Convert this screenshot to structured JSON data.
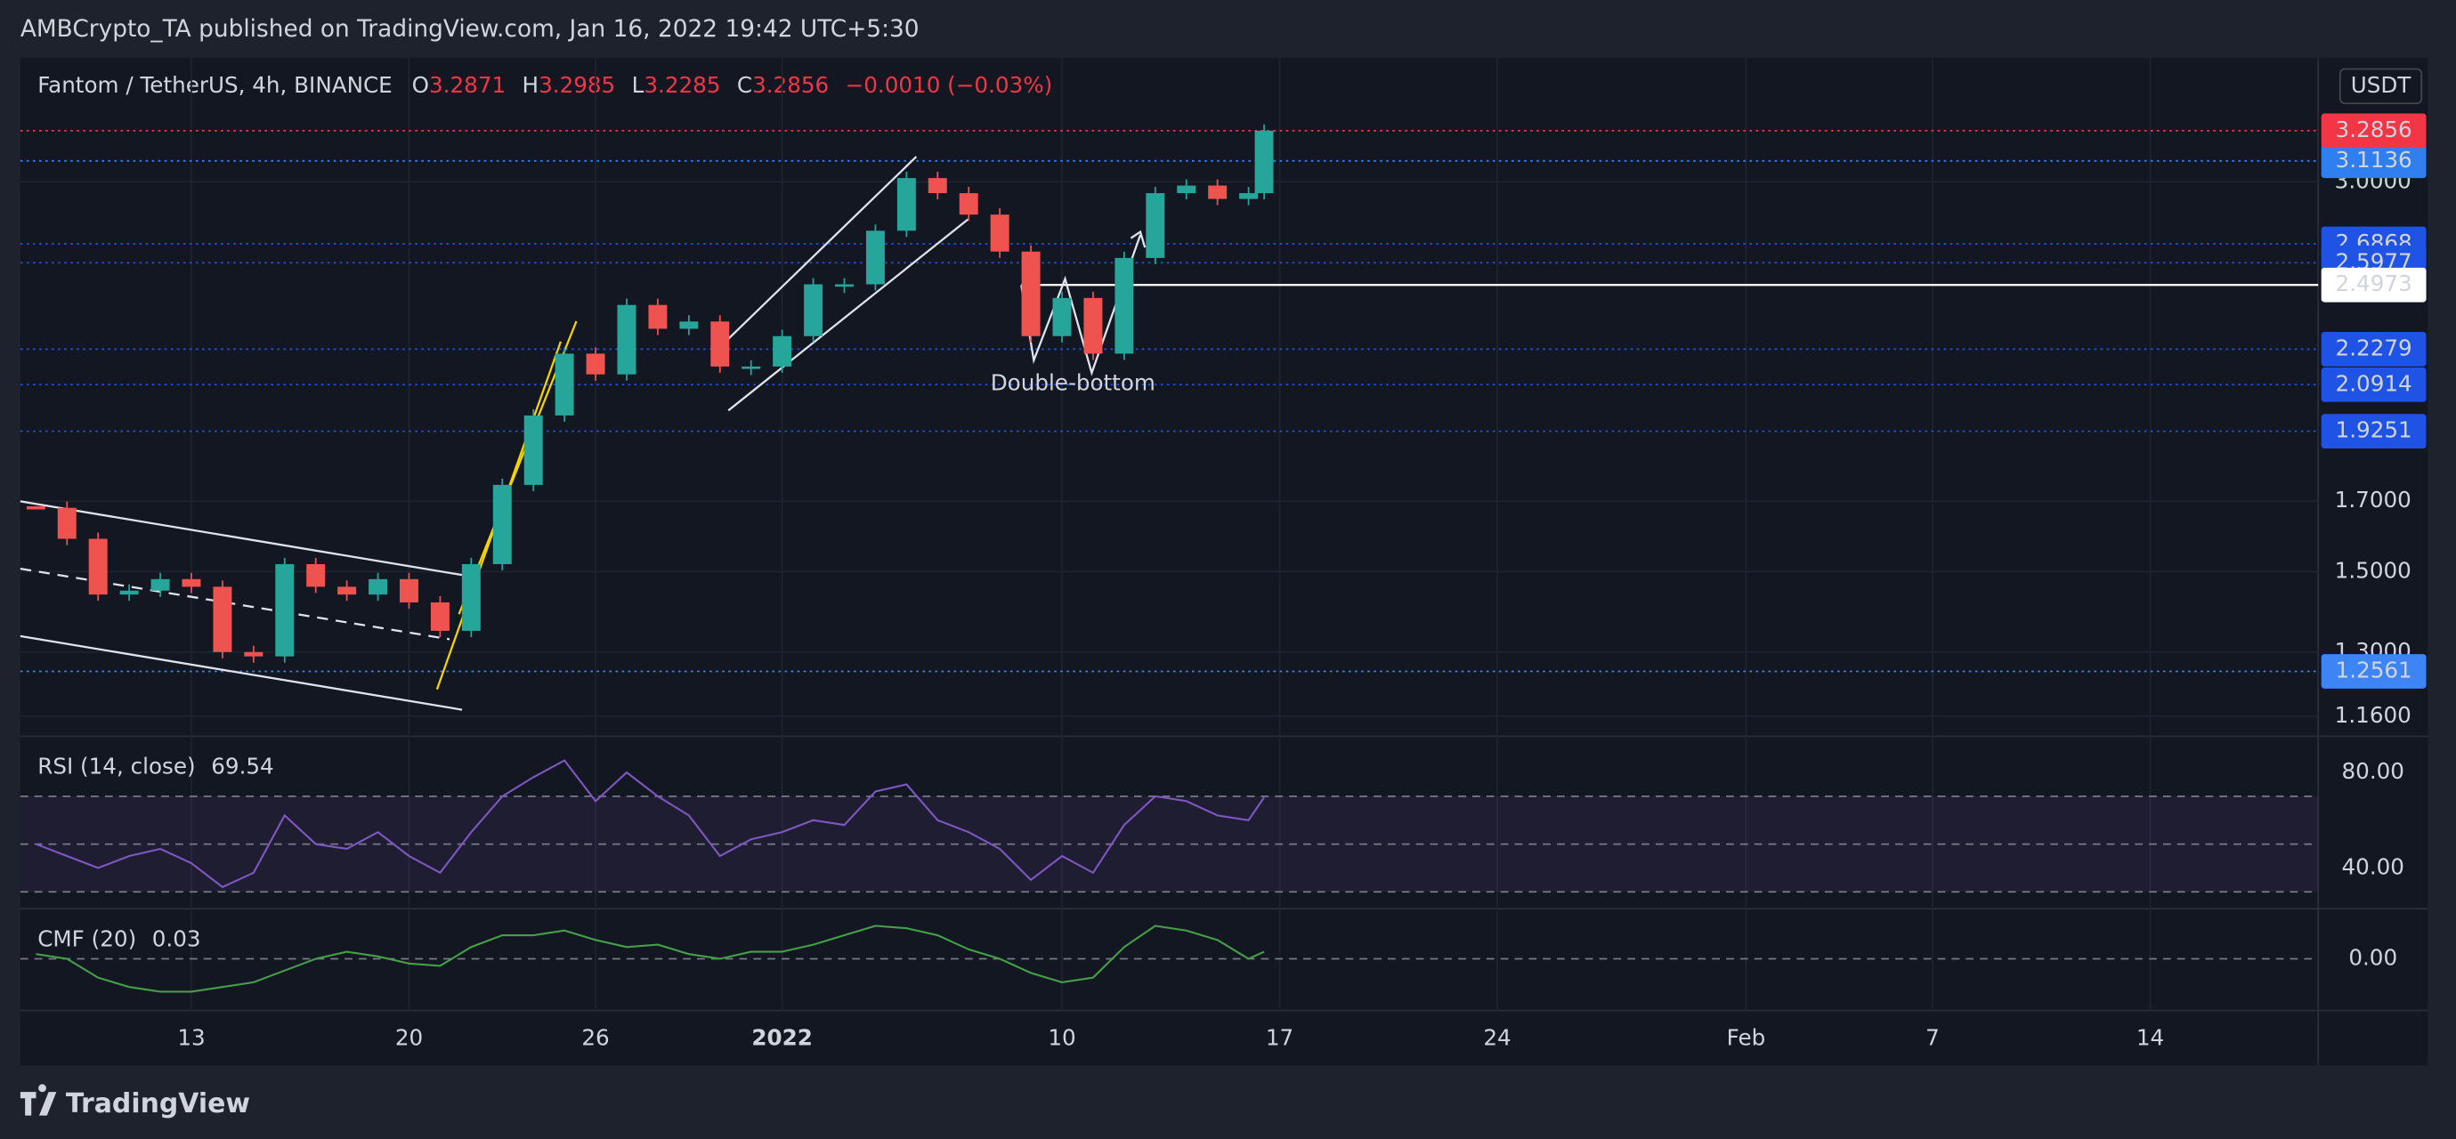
{
  "header": {
    "text": "AMBCrypto_TA published on TradingView.com, Jan 16, 2022 19:42 UTC+5:30"
  },
  "footer": {
    "brand": "TradingView"
  },
  "chart_data": {
    "type": "candlestick",
    "title": "Fantom / TetherUS, 4h, BINANCE",
    "ohlc": [
      {
        "label": "O",
        "value": 3.2871
      },
      {
        "label": "H",
        "value": 3.2985
      },
      {
        "label": "L",
        "value": 3.2285
      }
    ],
    "close_label": "C",
    "change": "−0.0010 (−0.03%)",
    "currency": "USDT",
    "annotation": "Double-bottom",
    "x": [
      8,
      9,
      10,
      11,
      12,
      13,
      14,
      15,
      16,
      17,
      18,
      19,
      20,
      21,
      22,
      23,
      24,
      25,
      26,
      27,
      28,
      29,
      30,
      31,
      32,
      33,
      34,
      35,
      36,
      37,
      38,
      39,
      40,
      41,
      42,
      43,
      44,
      45,
      46,
      47,
      47.5
    ],
    "values": [
      1.68,
      1.59,
      1.44,
      1.45,
      1.48,
      1.46,
      1.3,
      1.29,
      1.52,
      1.46,
      1.44,
      1.48,
      1.42,
      1.35,
      1.52,
      1.75,
      1.98,
      2.21,
      2.13,
      2.41,
      2.31,
      2.34,
      2.16,
      2.16,
      2.28,
      2.5,
      2.5,
      2.75,
      3.02,
      2.94,
      2.83,
      2.65,
      2.28,
      2.44,
      2.21,
      2.62,
      2.94,
      2.98,
      2.91,
      2.94,
      3.2856
    ],
    "up_color": "#26a69a",
    "down_color": "#ef5350",
    "last_color": "#f23645",
    "log_scale": true,
    "grid": true,
    "xlim": [
      7.5,
      81.4
    ],
    "xticks": [
      {
        "value": 13,
        "label": "13"
      },
      {
        "value": 20,
        "label": "20"
      },
      {
        "value": 26,
        "label": "26"
      },
      {
        "value": 32,
        "label": "2022"
      },
      {
        "value": 41,
        "label": "10"
      },
      {
        "value": 48,
        "label": "17"
      },
      {
        "value": 55,
        "label": "24"
      },
      {
        "value": 63,
        "label": "Feb"
      },
      {
        "value": 69,
        "label": "7"
      },
      {
        "value": 76,
        "label": "14"
      }
    ],
    "ylim": [
      1.119,
      3.739
    ],
    "yticks": [
      {
        "value": 1.16,
        "label": "1.1600"
      },
      {
        "value": 1.3,
        "label": "1.3000"
      },
      {
        "value": 1.5,
        "label": "1.5000"
      },
      {
        "value": 1.7,
        "label": "1.7000"
      },
      {
        "value": 3,
        "label": "3.0000"
      }
    ],
    "levels": [
      {
        "value": 3.1136,
        "color": "#2f7ff0"
      },
      {
        "value": 2.6868,
        "color": "#1e53e5"
      },
      {
        "value": 2.5977,
        "color": "#1e53e5"
      },
      {
        "value": 2.4973,
        "color": "#ffffff",
        "style": "solid"
      },
      {
        "value": 2.2279,
        "color": "#1e53e5"
      },
      {
        "value": 2.0914,
        "color": "#1e53e5"
      },
      {
        "value": 1.9251,
        "color": "#1e53e5"
      },
      {
        "value": 1.2561,
        "color": "#3d85f5"
      }
    ],
    "indicators": [
      {
        "type": "line",
        "name": "RSI (14, close)",
        "color": "#7e57c2",
        "values": [
          50,
          45,
          40,
          45,
          48,
          42,
          32,
          38,
          62,
          50,
          48,
          55,
          45,
          38,
          55,
          70,
          78,
          85,
          68,
          80,
          70,
          62,
          45,
          52,
          55,
          60,
          58,
          72,
          75,
          60,
          55,
          48,
          35,
          45,
          38,
          58,
          70,
          68,
          62,
          60,
          69.54
        ],
        "ylim": [
          22.95,
          95.1
        ],
        "yticks": [
          {
            "value": 40,
            "label": "40.00"
          },
          {
            "value": 80,
            "label": "80.00"
          }
        ],
        "bands": [
          30,
          50,
          70
        ]
      },
      {
        "type": "line",
        "name": "CMF (20)",
        "color": "#43a047",
        "values": [
          0.02,
          0,
          -0.08,
          -0.12,
          -0.14,
          -0.14,
          -0.12,
          -0.1,
          -0.05,
          0,
          0.03,
          0.01,
          -0.02,
          -0.03,
          0.05,
          0.1,
          0.1,
          0.12,
          0.08,
          0.05,
          0.06,
          0.02,
          0,
          0.03,
          0.03,
          0.06,
          0.1,
          0.14,
          0.13,
          0.1,
          0.04,
          0,
          -0.06,
          -0.1,
          -0.08,
          0.05,
          0.14,
          0.12,
          0.08,
          0,
          0.03
        ],
        "ylim": [
          -0.22,
          0.213
        ],
        "yticks": [
          {
            "value": 0,
            "label": "0.00"
          }
        ],
        "bands": [
          0
        ]
      }
    ]
  }
}
